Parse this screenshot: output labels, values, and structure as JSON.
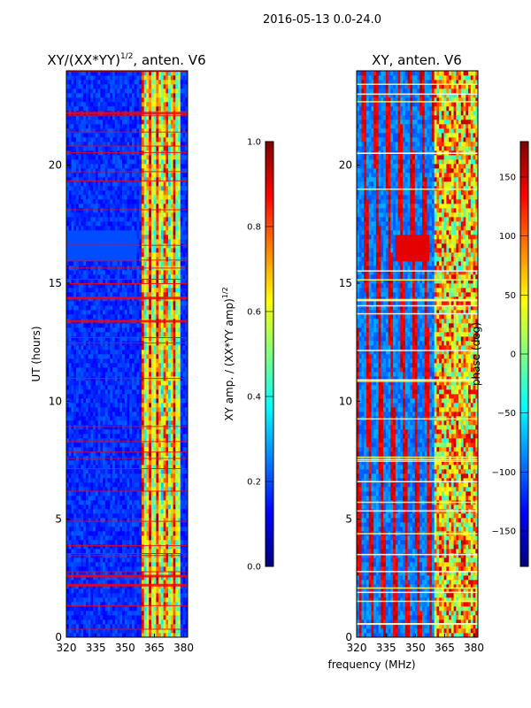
{
  "figure": {
    "suptitle": "2016-05-13 0.0-24.0"
  },
  "colors": {
    "jet": [
      "#00007f",
      "#0000ff",
      "#007fff",
      "#00ffff",
      "#7fff7f",
      "#ffff00",
      "#ff7f00",
      "#ff0000",
      "#7f0000"
    ],
    "flag_line": "#ff0000",
    "text": "#000000"
  },
  "chart_data": [
    {
      "type": "heatmap",
      "title_prefix": "XY/(XX*YY)",
      "title_sup": "1/2",
      "title_suffix": ", anten. V6",
      "xlabel": "",
      "ylabel": "UT (hours)",
      "xlim": [
        320,
        382
      ],
      "ylim": [
        0,
        24
      ],
      "xticks": [
        320,
        335,
        350,
        365,
        380
      ],
      "yticks": [
        0,
        5,
        10,
        15,
        20
      ],
      "quantity": "normalized XY amplitude",
      "colorbar": {
        "label_prefix": "XY amp. / (XX*YY amp)",
        "label_sup": "1/2",
        "range": [
          0.0,
          1.0
        ],
        "ticks": [
          "0.0",
          "0.2",
          "0.4",
          "0.6",
          "0.8",
          "1.0"
        ],
        "tick_values": [
          0.0,
          0.2,
          0.4,
          0.6,
          0.8,
          1.0
        ]
      }
    },
    {
      "type": "heatmap",
      "title": "XY, anten. V6",
      "xlabel": "frequency (MHz)",
      "ylabel": "",
      "xlim": [
        320,
        382
      ],
      "ylim": [
        0,
        24
      ],
      "xticks": [
        320,
        335,
        350,
        365,
        380
      ],
      "yticks": [
        0,
        5,
        10,
        15,
        20
      ],
      "quantity": "XY phase",
      "colorbar": {
        "label": "phase (deg)",
        "range": [
          -180,
          180
        ],
        "ticks": [
          "150",
          "100",
          "50",
          "0",
          "−50",
          "−100",
          "−150"
        ],
        "tick_values": [
          150,
          100,
          50,
          0,
          -50,
          -100,
          -150
        ]
      }
    }
  ]
}
